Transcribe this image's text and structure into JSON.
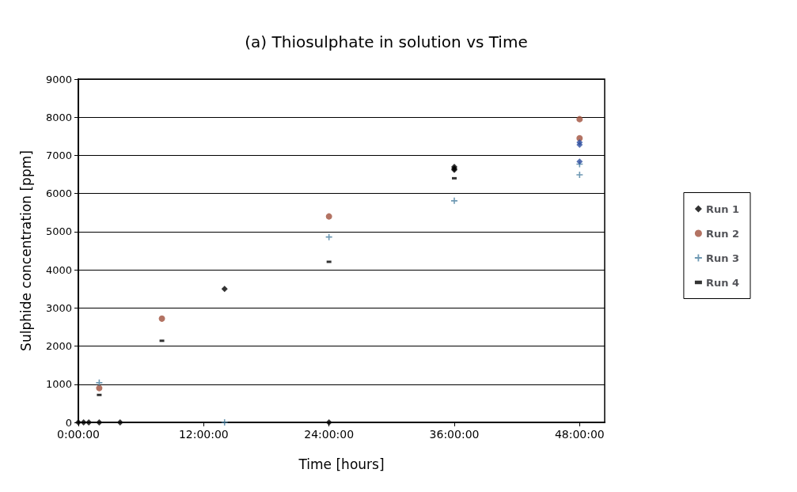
{
  "chart_data": {
    "type": "scatter",
    "title": "(a) Thiosulphate in solution vs Time",
    "xlabel": "Time [hours]",
    "ylabel": "Sulphide concentration [ppm]",
    "xlim": [
      0,
      50.4
    ],
    "xticks": [
      {
        "value": 0,
        "label": "0:00:00"
      },
      {
        "value": 12,
        "label": "12:00:00"
      },
      {
        "value": 24,
        "label": "24:00:00"
      },
      {
        "value": 36,
        "label": "36:00:00"
      },
      {
        "value": 48,
        "label": "48:00:00"
      }
    ],
    "ylim": [
      0,
      9000
    ],
    "yticks": [
      0,
      1000,
      2000,
      3000,
      4000,
      5000,
      6000,
      7000,
      8000,
      9000
    ],
    "grid": "y",
    "legend": "right",
    "series": [
      {
        "name": "Run 1",
        "color": "#000000",
        "marker": "diamond",
        "x": [
          0,
          0.5,
          1,
          2,
          4,
          14,
          24,
          36,
          36,
          36
        ],
        "values": [
          0,
          0,
          0,
          0,
          0,
          3500,
          0,
          6700,
          6650,
          6620
        ]
      },
      {
        "name": "Run 2",
        "color": "#a0503c",
        "marker": "circle",
        "x": [
          2,
          8,
          24,
          48,
          48
        ],
        "values": [
          900,
          2720,
          5400,
          7950,
          7450
        ]
      },
      {
        "name": "Run 3",
        "color": "#4a7fa0",
        "marker": "cross",
        "x": [
          2,
          14,
          24,
          36,
          48,
          48
        ],
        "values": [
          1040,
          0,
          4860,
          5810,
          6490,
          6770
        ]
      },
      {
        "name": "Run 4",
        "color": "#000000",
        "marker": "square",
        "x": [
          2,
          8,
          24,
          36
        ],
        "values": [
          720,
          2140,
          4210,
          6400
        ]
      },
      {
        "color": "#2e4fa0",
        "marker": "diamond",
        "x": [
          48,
          48,
          48
        ],
        "values": [
          7340,
          7280,
          6840
        ]
      }
    ]
  }
}
